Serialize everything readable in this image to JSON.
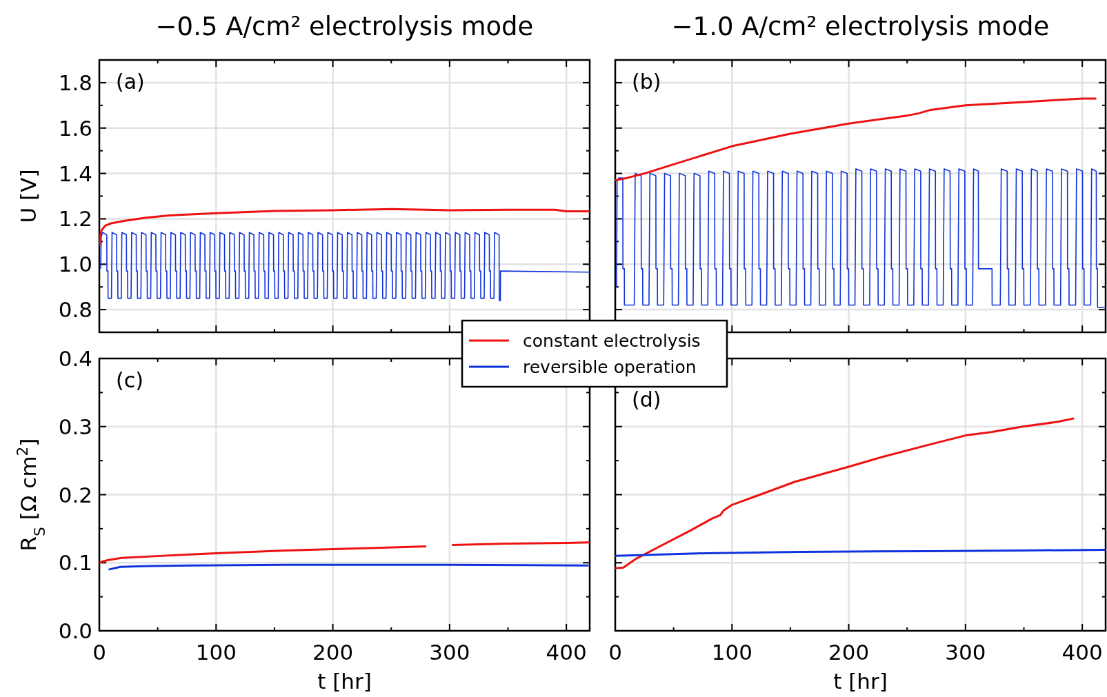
{
  "chart_data": [
    {
      "type": "line",
      "title": "−0.5 A/cm² electrolysis mode",
      "ylabel": "U [V]",
      "xlim": [
        0,
        420
      ],
      "ylim": [
        0.7,
        1.9
      ],
      "xticks": [
        0,
        {
          "value": 50,
          "label": null
        },
        100,
        {
          "value": 150,
          "label": null
        },
        200,
        {
          "value": 250,
          "label": null
        },
        300,
        {
          "value": 350,
          "label": null
        },
        400
      ],
      "yticks": [
        0.8,
        {
          "value": 0.9,
          "label": null
        },
        {
          "value": 1,
          "label": "1.0"
        },
        {
          "value": 1.1,
          "label": null
        },
        1.2,
        {
          "value": 1.3,
          "label": null
        },
        1.4,
        {
          "value": 1.5,
          "label": null
        },
        1.6,
        {
          "value": 1.7,
          "label": null
        },
        1.8
      ],
      "grid": true,
      "tick_labels": "y",
      "annotations": [
        "(a)"
      ],
      "series": [
        {
          "color": "#1133dd",
          "x": [
            1.2,
            1.6,
            2.8,
            6.4,
            6.5,
            7.4,
            7.5,
            10.4,
            10.9,
            14.8,
            14.9,
            15.8,
            15.9,
            18.8,
            19.3,
            23.2,
            23.3,
            24.2,
            24.3,
            27.2,
            27.7,
            31.6,
            31.7,
            32.6,
            32.7,
            35.6,
            36.1,
            40,
            40.1,
            41,
            41.1,
            44,
            44.5,
            48.4,
            48.5,
            49.4,
            49.5,
            52.4,
            52.9,
            56.8,
            56.9,
            57.8,
            57.9,
            60.8,
            61.3,
            65.2,
            65.3,
            66.2,
            66.3,
            69.2,
            69.7,
            73.6,
            73.7,
            74.6,
            74.7,
            77.6,
            78.1,
            82,
            82.1,
            83,
            83.1,
            86,
            86.5,
            90.4,
            90.5,
            91.4,
            91.5,
            94.4,
            94.9,
            98.8,
            98.9,
            99.8,
            99.9,
            102.8,
            103.3,
            107.2,
            107.3,
            108.2,
            108.3,
            111.2,
            111.7,
            115.6,
            115.7,
            116.6,
            116.7,
            119.6,
            120.1,
            124,
            124.1,
            125,
            125.1,
            128,
            128.5,
            132.4,
            132.5,
            133.4,
            133.5,
            136.4,
            136.9,
            140.8,
            140.9,
            141.8,
            141.9,
            144.8,
            145.3,
            149.2,
            149.3,
            150.2,
            150.3,
            153.2,
            153.7,
            157.6,
            157.7,
            158.6,
            158.7,
            161.6,
            162.1,
            166,
            166.1,
            167,
            167.1,
            170,
            170.5,
            174.4,
            174.5,
            175.4,
            175.5,
            178.4,
            178.9,
            182.8,
            182.9,
            183.8,
            183.9,
            186.8,
            187.3,
            191.2,
            191.3,
            192.2,
            192.3,
            195.2,
            195.7,
            199.6,
            199.7,
            200.6,
            200.7,
            203.6,
            204.1,
            208,
            208.1,
            209,
            209.1,
            212,
            212.5,
            216.4,
            216.5,
            217.4,
            217.5,
            220.4,
            220.9,
            224.8,
            224.9,
            225.8,
            225.9,
            228.8,
            229.3,
            233.2,
            233.3,
            234.2,
            234.3,
            237.2,
            237.7,
            241.6,
            241.7,
            242.6,
            242.7,
            245.6,
            246.1,
            250,
            250.1,
            251,
            251.1,
            254,
            254.5,
            258.4,
            258.5,
            259.4,
            259.5,
            262.4,
            262.9,
            266.8,
            266.9,
            267.8,
            267.9,
            270.8,
            271.3,
            275.2,
            275.3,
            276.2,
            276.3,
            279.2,
            279.7,
            283.6,
            283.7,
            284.6,
            284.7,
            287.6,
            288.1,
            292,
            292.1,
            293,
            293.1,
            296,
            296.5,
            300.4,
            300.5,
            301.4,
            301.5,
            304.4,
            304.9,
            308.8,
            308.9,
            309.8,
            309.9,
            312.8,
            313.3,
            317.2,
            317.3,
            318.2,
            318.3,
            321.2,
            321.7,
            325.6,
            325.7,
            326.6,
            326.7,
            329.6,
            330.1,
            334,
            334.1,
            335,
            335.1,
            338,
            338.5,
            342.4,
            342.5,
            343.5,
            343.6,
            420
          ],
          "values": [
            0.98,
            1.12,
            1.14,
            1.13,
            0.97,
            0.97,
            0.85,
            0.85,
            1.14,
            1.13,
            0.97,
            0.97,
            0.85,
            0.85,
            1.14,
            1.13,
            0.97,
            0.97,
            0.85,
            0.85,
            1.14,
            1.13,
            0.97,
            0.97,
            0.85,
            0.85,
            1.14,
            1.13,
            0.97,
            0.97,
            0.85,
            0.85,
            1.14,
            1.13,
            0.97,
            0.97,
            0.85,
            0.85,
            1.14,
            1.13,
            0.97,
            0.97,
            0.85,
            0.85,
            1.14,
            1.13,
            0.97,
            0.97,
            0.85,
            0.85,
            1.14,
            1.13,
            0.97,
            0.97,
            0.85,
            0.85,
            1.14,
            1.13,
            0.97,
            0.97,
            0.85,
            0.85,
            1.14,
            1.13,
            0.97,
            0.97,
            0.85,
            0.85,
            1.14,
            1.13,
            0.97,
            0.97,
            0.85,
            0.85,
            1.14,
            1.13,
            0.97,
            0.97,
            0.85,
            0.85,
            1.14,
            1.13,
            0.97,
            0.97,
            0.85,
            0.85,
            1.14,
            1.13,
            0.97,
            0.97,
            0.85,
            0.85,
            1.14,
            1.13,
            0.97,
            0.97,
            0.85,
            0.85,
            1.14,
            1.13,
            0.97,
            0.97,
            0.85,
            0.85,
            1.14,
            1.13,
            0.97,
            0.97,
            0.85,
            0.85,
            1.14,
            1.13,
            0.97,
            0.97,
            0.85,
            0.85,
            1.14,
            1.13,
            0.97,
            0.97,
            0.85,
            0.85,
            1.14,
            1.13,
            0.97,
            0.97,
            0.85,
            0.85,
            1.14,
            1.13,
            0.97,
            0.97,
            0.85,
            0.85,
            1.14,
            1.13,
            0.97,
            0.97,
            0.85,
            0.85,
            1.14,
            1.13,
            0.97,
            0.97,
            0.85,
            0.85,
            1.14,
            1.13,
            0.97,
            0.97,
            0.85,
            0.85,
            1.14,
            1.13,
            0.97,
            0.97,
            0.85,
            0.85,
            1.14,
            1.13,
            0.97,
            0.97,
            0.85,
            0.85,
            1.14,
            1.13,
            0.97,
            0.97,
            0.85,
            0.85,
            1.14,
            1.13,
            0.97,
            0.97,
            0.85,
            0.85,
            1.14,
            1.13,
            0.97,
            0.97,
            0.85,
            0.85,
            1.14,
            1.13,
            0.97,
            0.97,
            0.85,
            0.85,
            1.14,
            1.13,
            0.97,
            0.97,
            0.85,
            0.85,
            1.14,
            1.13,
            0.97,
            0.97,
            0.85,
            0.85,
            1.14,
            1.13,
            0.97,
            0.97,
            0.85,
            0.85,
            1.14,
            1.13,
            0.97,
            0.97,
            0.85,
            0.85,
            1.14,
            1.13,
            0.97,
            0.97,
            0.85,
            0.85,
            1.14,
            1.13,
            0.97,
            0.97,
            0.85,
            0.85,
            1.14,
            1.13,
            0.97,
            0.97,
            0.85,
            0.85,
            1.14,
            1.13,
            0.97,
            0.97,
            0.85,
            0.85,
            1.14,
            1.13,
            0.97,
            0.97,
            0.85,
            0.85,
            1.14,
            1.13,
            0.84,
            0.84,
            0.97,
            0.965
          ]
        },
        {
          "color": "#ee1111",
          "x": [
            0,
            1,
            2,
            5,
            10,
            20,
            40,
            60,
            100,
            150,
            200,
            250,
            280,
            300,
            350,
            390,
            400,
            420
          ],
          "values": [
            1.08,
            1.13,
            1.15,
            1.17,
            1.18,
            1.19,
            1.205,
            1.215,
            1.225,
            1.235,
            1.238,
            1.243,
            1.24,
            1.238,
            1.24,
            1.24,
            1.233,
            1.233
          ]
        }
      ]
    },
    {
      "type": "line",
      "title": "−1.0 A/cm² electrolysis mode",
      "xlim": [
        0,
        420
      ],
      "ylim": [
        0.7,
        1.9
      ],
      "xticks": [
        0,
        {
          "value": 50,
          "label": null
        },
        100,
        {
          "value": 150,
          "label": null
        },
        200,
        {
          "value": 250,
          "label": null
        },
        300,
        {
          "value": 350,
          "label": null
        },
        400
      ],
      "yticks": [
        0.8,
        {
          "value": 0.9,
          "label": null
        },
        1,
        {
          "value": 1.1,
          "label": null
        },
        1.2,
        {
          "value": 1.3,
          "label": null
        },
        1.4,
        {
          "value": 1.5,
          "label": null
        },
        1.6,
        {
          "value": 1.7,
          "label": null
        },
        1.8
      ],
      "grid": true,
      "tick_labels": false,
      "annotations": [
        "(b)"
      ],
      "series": [
        {
          "color": "#1133dd",
          "x": [
            1.2,
            1.6,
            3,
            6.5,
            6.6,
            7.8,
            7.9,
            16.3,
            17.1,
            22.2,
            22.3,
            23.5,
            23.6,
            28.9,
            29.7,
            34.8,
            34.9,
            36.1,
            36.2,
            41.5,
            42.3,
            47.4,
            47.5,
            48.7,
            48.8,
            54.1,
            54.9,
            60,
            60.1,
            61.3,
            61.4,
            66.7,
            67.5,
            72.6,
            72.7,
            73.9,
            74,
            79.3,
            80.1,
            85.2,
            85.3,
            86.5,
            86.6,
            91.9,
            92.7,
            97.8,
            97.9,
            99.1,
            99.2,
            104.5,
            105.3,
            110.4,
            110.5,
            111.7,
            111.8,
            117.1,
            117.9,
            123,
            123.1,
            124.3,
            124.4,
            129.7,
            130.5,
            135.6,
            135.7,
            136.9,
            137,
            142.3,
            143.1,
            148.2,
            148.3,
            149.5,
            149.6,
            154.9,
            155.7,
            160.8,
            160.9,
            162.1,
            162.2,
            167.5,
            168.3,
            173.4,
            173.5,
            174.7,
            174.8,
            180.1,
            180.9,
            186,
            186.1,
            187.3,
            187.4,
            192.7,
            193.5,
            198.6,
            198.7,
            199.9,
            200,
            205.3,
            206.1,
            211.2,
            211.3,
            212.5,
            212.6,
            217.9,
            218.7,
            223.8,
            223.9,
            225.1,
            225.2,
            230.5,
            231.3,
            236.4,
            236.5,
            237.7,
            237.8,
            243.1,
            243.9,
            249,
            249.1,
            250.3,
            250.4,
            255.7,
            256.5,
            261.6,
            261.7,
            262.9,
            263,
            268.3,
            269.1,
            274.2,
            274.3,
            275.5,
            275.6,
            280.9,
            281.7,
            286.8,
            286.9,
            288.1,
            288.2,
            293.5,
            294.3,
            299.4,
            299.5,
            300.7,
            300.8,
            306.1,
            306.9,
            311,
            311.1,
            322.7,
            322.8,
            329.8,
            330.6,
            335.7,
            335.8,
            337,
            337.1,
            342.7,
            343.5,
            348.6,
            348.7,
            349.9,
            350,
            355.6,
            356.4,
            361.5,
            361.6,
            362.8,
            362.9,
            368.5,
            369.3,
            374.4,
            374.5,
            375.7,
            375.8,
            381.4,
            382.2,
            387.3,
            387.4,
            388.6,
            388.7,
            394.3,
            395.1,
            400.2,
            400.3,
            401.5,
            401.6,
            407.2,
            408,
            412,
            412.1,
            413,
            413.1,
            420
          ],
          "values": [
            0.9,
            1.37,
            1.38,
            1.38,
            0.98,
            0.98,
            0.82,
            0.82,
            1.4,
            1.39,
            0.98,
            0.98,
            0.82,
            0.82,
            1.4,
            1.39,
            0.98,
            0.98,
            0.82,
            0.82,
            1.4,
            1.39,
            0.98,
            0.98,
            0.82,
            0.82,
            1.4,
            1.39,
            0.98,
            0.98,
            0.82,
            0.82,
            1.4,
            1.39,
            0.98,
            0.98,
            0.82,
            0.82,
            1.41,
            1.4,
            0.98,
            0.98,
            0.82,
            0.82,
            1.41,
            1.4,
            0.98,
            0.98,
            0.82,
            0.82,
            1.41,
            1.4,
            0.98,
            0.98,
            0.82,
            0.82,
            1.41,
            1.4,
            0.98,
            0.98,
            0.82,
            0.82,
            1.41,
            1.4,
            0.98,
            0.98,
            0.82,
            0.82,
            1.41,
            1.4,
            0.98,
            0.98,
            0.82,
            0.82,
            1.41,
            1.4,
            0.98,
            0.98,
            0.82,
            0.82,
            1.41,
            1.4,
            0.98,
            0.98,
            0.82,
            0.82,
            1.41,
            1.4,
            0.98,
            0.98,
            0.82,
            0.82,
            1.41,
            1.4,
            0.98,
            0.98,
            0.82,
            0.82,
            1.42,
            1.41,
            0.98,
            0.98,
            0.82,
            0.82,
            1.42,
            1.41,
            0.98,
            0.98,
            0.82,
            0.82,
            1.42,
            1.41,
            0.98,
            0.98,
            0.82,
            0.82,
            1.42,
            1.41,
            0.98,
            0.98,
            0.82,
            0.82,
            1.42,
            1.41,
            0.98,
            0.98,
            0.82,
            0.82,
            1.42,
            1.41,
            0.98,
            0.98,
            0.82,
            0.82,
            1.42,
            1.41,
            0.98,
            0.98,
            0.82,
            0.82,
            1.42,
            1.41,
            0.98,
            0.98,
            0.82,
            0.82,
            1.42,
            1.41,
            0.98,
            0.98,
            0.82,
            0.82,
            1.42,
            1.41,
            0.98,
            0.98,
            0.82,
            0.82,
            1.42,
            1.41,
            0.98,
            0.98,
            0.82,
            0.82,
            1.42,
            1.41,
            0.98,
            0.98,
            0.82,
            0.82,
            1.42,
            1.41,
            0.98,
            0.98,
            0.82,
            0.82,
            1.42,
            1.41,
            0.98,
            0.98,
            0.82,
            0.82,
            1.42,
            1.41,
            0.98,
            0.98,
            0.82,
            0.82,
            1.42,
            1.41,
            0.98,
            0.98,
            0.81,
            0.81
          ]
        },
        {
          "color": "#ee1111",
          "x": [
            0,
            10,
            25,
            50,
            100,
            150,
            200,
            250,
            260,
            270,
            300,
            350,
            400,
            412
          ],
          "values": [
            1.37,
            1.38,
            1.4,
            1.44,
            1.52,
            1.575,
            1.62,
            1.655,
            1.665,
            1.68,
            1.7,
            1.715,
            1.73,
            1.73
          ]
        }
      ]
    },
    {
      "type": "line",
      "xlabel": "t [hr]",
      "ylabel": "R$_{S}$  [Ω cm$^{2}$]",
      "xlim": [
        0,
        420
      ],
      "ylim": [
        0,
        0.4
      ],
      "xticks": [
        0,
        {
          "value": 50,
          "label": null
        },
        100,
        {
          "value": 150,
          "label": null
        },
        200,
        {
          "value": 250,
          "label": null
        },
        300,
        {
          "value": 350,
          "label": null
        },
        400
      ],
      "yticks": [
        {
          "value": 0,
          "label": "0.0"
        },
        {
          "value": 0.05,
          "label": null
        },
        0.1,
        {
          "value": 0.15,
          "label": null
        },
        0.2,
        {
          "value": 0.25,
          "label": null
        },
        0.3,
        {
          "value": 0.35,
          "label": null
        },
        0.4
      ],
      "grid": true,
      "legend": "top right",
      "annotations": [
        "(c)"
      ],
      "series": [
        {
          "name": "constant electrolysis",
          "color": "#ee1111",
          "x": [
            0,
            3,
            8,
            19,
            52,
            100,
            160,
            200,
            242,
            280,
            291,
            302,
            350,
            400,
            420
          ],
          "values": [
            0.1,
            0.102,
            0.104,
            0.107,
            0.11,
            0.114,
            0.118,
            0.12,
            0.122,
            0.124,
            null,
            0.126,
            0.128,
            0.129,
            0.13
          ]
        },
        {
          "name": "reversible operation",
          "color": "#1133dd",
          "x": [
            8,
            18,
            38,
            79,
            160,
            200,
            296,
            419
          ],
          "values": [
            0.09,
            0.094,
            0.095,
            0.096,
            0.097,
            0.097,
            0.097,
            0.096
          ]
        }
      ]
    },
    {
      "type": "line",
      "xlabel": "t [hr]",
      "xlim": [
        0,
        420
      ],
      "ylim": [
        0,
        0.4
      ],
      "xticks": [
        0,
        {
          "value": 50,
          "label": null
        },
        100,
        {
          "value": 150,
          "label": null
        },
        200,
        {
          "value": 250,
          "label": null
        },
        300,
        {
          "value": 350,
          "label": null
        },
        400
      ],
      "yticks": [
        0,
        {
          "value": 0.05,
          "label": null
        },
        0.1,
        {
          "value": 0.15,
          "label": null
        },
        0.2,
        {
          "value": 0.25,
          "label": null
        },
        0.3,
        {
          "value": 0.35,
          "label": null
        },
        0.4
      ],
      "grid": true,
      "tick_labels": "x",
      "annotations": [
        "(d)"
      ],
      "series": [
        {
          "color": "#ee1111",
          "x": [
            0,
            7,
            18,
            37,
            64,
            83,
            90,
            93,
            100,
            124,
            154,
            200,
            230,
            268,
            300,
            322,
            349,
            379,
            393
          ],
          "values": [
            0.092,
            0.093,
            0.106,
            0.123,
            0.147,
            0.165,
            0.17,
            0.177,
            0.185,
            0.2,
            0.219,
            0.241,
            0.256,
            0.273,
            0.287,
            0.292,
            0.3,
            0.307,
            0.312
          ]
        },
        {
          "color": "#1133dd",
          "x": [
            0,
            78,
            159,
            268,
            349,
            420
          ],
          "values": [
            0.11,
            0.114,
            0.116,
            0.117,
            0.118,
            0.119
          ]
        }
      ]
    }
  ]
}
